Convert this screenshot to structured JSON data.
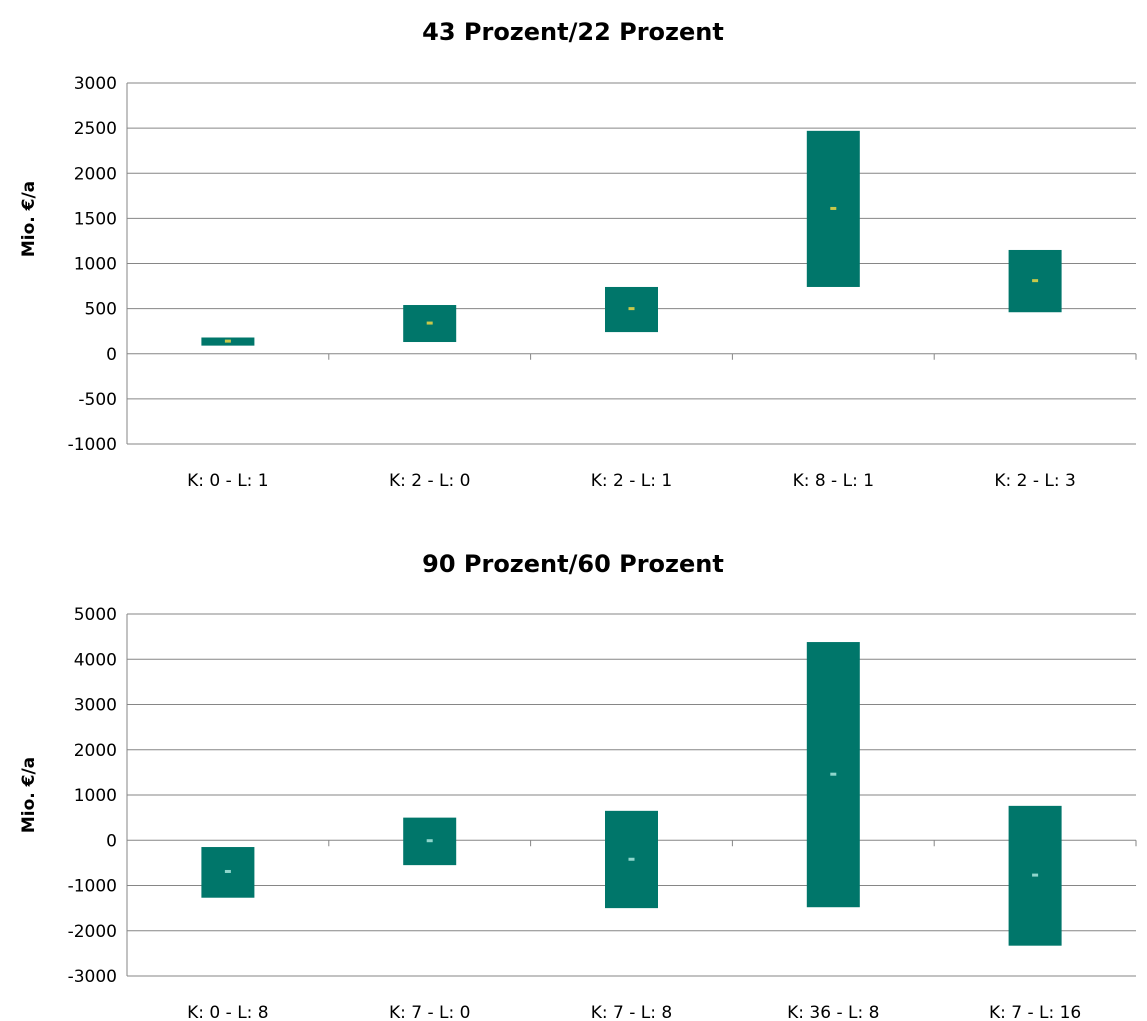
{
  "chart_data": [
    {
      "type": "bar",
      "subtype": "floating-range-with-midpoint",
      "title": "43 Prozent/22 Prozent",
      "xlabel": "",
      "ylabel": "Mio. €/a",
      "ylim": [
        -1000,
        3000
      ],
      "yticks": [
        "3000",
        "2500",
        "2000",
        "1500",
        "1000",
        "500",
        "0",
        "-500",
        "-1000"
      ],
      "ytick_values": [
        3000,
        2500,
        2000,
        1500,
        1000,
        500,
        0,
        -500,
        -1000
      ],
      "grid": true,
      "legend": "none",
      "colors": {
        "bar": "#00766A",
        "marker": "#C8C84A"
      },
      "categories": [
        "K: 0 - L: 1",
        "K: 2 - L: 0",
        "K: 2 - L: 1",
        "K: 8 - L: 1",
        "K: 2 - L: 3"
      ],
      "series": [
        {
          "role": "low",
          "values": [
            90,
            130,
            240,
            740,
            460
          ]
        },
        {
          "role": "high",
          "values": [
            180,
            540,
            740,
            2470,
            1150
          ]
        },
        {
          "role": "mid",
          "values": [
            140,
            340,
            500,
            1610,
            810
          ]
        }
      ]
    },
    {
      "type": "bar",
      "subtype": "floating-range-with-midpoint",
      "title": "90 Prozent/60 Prozent",
      "xlabel": "",
      "ylabel": "Mio. €/a",
      "ylim": [
        -3000,
        5000
      ],
      "yticks": [
        "5000",
        "4000",
        "3000",
        "2000",
        "1000",
        "0",
        "-1000",
        "-2000",
        "-3000"
      ],
      "ytick_values": [
        5000,
        4000,
        3000,
        2000,
        1000,
        0,
        -1000,
        -2000,
        -3000
      ],
      "grid": true,
      "legend": "none",
      "colors": {
        "bar": "#00766A",
        "marker": "#8FD6CC"
      },
      "categories": [
        "K: 0 - L: 8",
        "K: 7 - L: 0",
        "K: 7 - L: 8",
        "K: 36 - L: 8",
        "K: 7 - L: 16"
      ],
      "series": [
        {
          "role": "low",
          "values": [
            -1270,
            -550,
            -1500,
            -1480,
            -2330
          ]
        },
        {
          "role": "high",
          "values": [
            -150,
            500,
            650,
            4380,
            760
          ]
        },
        {
          "role": "mid",
          "values": [
            -690,
            -10,
            -420,
            1460,
            -770
          ]
        }
      ]
    }
  ]
}
